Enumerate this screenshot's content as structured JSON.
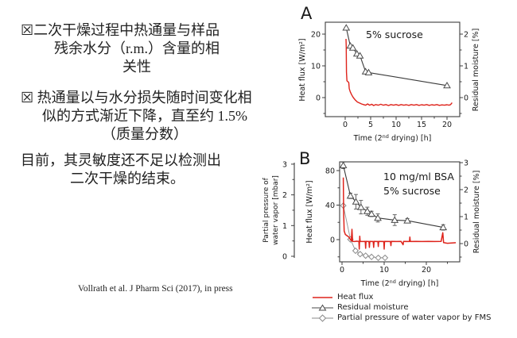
{
  "left_text": {
    "bullet1_lines": [
      "☒二次干燥过程中热通量与样品",
      "残余水分（r.m.）含量的相",
      "关性"
    ],
    "bullet2_lines": [
      "☒ 热通量以与水分损失随时间变化相",
      "似的方式渐近下降，直至约 1.5%",
      "（质量分数）"
    ],
    "para3_lines": [
      "目前，其灵敏度还不足以检测出",
      "二次干燥的结束。"
    ],
    "citation": "Vollrath et al. J Pharm Sci (2017), in press"
  },
  "legend": {
    "items": [
      {
        "label": "Heat flux",
        "marker": "red-line",
        "color": "#de231b"
      },
      {
        "label": "Residual moisture",
        "marker": "triangle-line",
        "color": "#4a4a4a"
      },
      {
        "label": "Partial pressure of water vapor by FMS",
        "marker": "diamond-line",
        "color": "#8a8a8a"
      }
    ]
  },
  "chart_data": [
    {
      "type": "line",
      "panel_label": "A",
      "annotation_lines": [
        "5% sucrose"
      ],
      "xlabel": "Time (2nd drying) [h]",
      "xlabel_parts": [
        "Time (2",
        "nd",
        " drying) [h]"
      ],
      "ylabel_left": "Heat flux [W/m²]",
      "ylabel_right": "Residual moisture [%]",
      "xlim": [
        -3.9,
        22.5
      ],
      "ylim_left": [
        -6,
        23.75
      ],
      "ylim_right": [
        -0.6,
        2.38
      ],
      "xticks": [
        0,
        5,
        10,
        15,
        20
      ],
      "xticks_minor": [
        2.5,
        7.5,
        12.5,
        17.5
      ],
      "yticks_left": [
        0,
        10,
        20
      ],
      "yticks_left_minor": [
        -5,
        5,
        15
      ],
      "yticks_right": [
        0,
        1,
        2
      ],
      "yticks_right_minor": [
        -0.5,
        0.5,
        1.5
      ],
      "series": [
        {
          "name": "Residual moisture",
          "axis": "right",
          "marker": "triangle",
          "color": "#3a3a3a",
          "width": 1.1,
          "points": [
            [
              0.2,
              2.2
            ],
            [
              1.0,
              1.63
            ],
            [
              1.5,
              1.57
            ],
            [
              2.3,
              1.38
            ],
            [
              2.9,
              1.32
            ],
            [
              4.0,
              0.82
            ],
            [
              4.6,
              0.79
            ],
            [
              20,
              0.38
            ]
          ]
        },
        {
          "name": "Heat flux",
          "axis": "left",
          "marker": "none",
          "color": "#de231b",
          "width": 1.4,
          "points": [
            [
              0.15,
              18.5
            ],
            [
              0.2,
              16
            ],
            [
              0.25,
              8
            ],
            [
              0.35,
              5.3
            ],
            [
              0.55,
              5.0
            ],
            [
              0.7,
              4.7
            ],
            [
              0.8,
              2.8
            ],
            [
              1.0,
              1.8
            ],
            [
              1.3,
              0.8
            ],
            [
              1.6,
              0.0
            ],
            [
              2.0,
              -0.8
            ],
            [
              2.4,
              -1.4
            ],
            [
              2.8,
              -1.7
            ],
            [
              3.2,
              -2.0
            ],
            [
              3.6,
              -2.2
            ],
            [
              4.0,
              -2.4
            ],
            [
              4.4,
              -2.0
            ],
            [
              4.8,
              -2.4
            ],
            [
              5.2,
              -2.1
            ],
            [
              5.6,
              -2.5
            ],
            [
              6.0,
              -2.2
            ],
            [
              6.5,
              -2.4
            ],
            [
              7.0,
              -2.1
            ],
            [
              7.5,
              -2.4
            ],
            [
              8.0,
              -2.2
            ],
            [
              8.5,
              -2.5
            ],
            [
              9.0,
              -2.2
            ],
            [
              9.5,
              -2.4
            ],
            [
              10.0,
              -2.2
            ],
            [
              10.5,
              -2.45
            ],
            [
              11.0,
              -2.2
            ],
            [
              11.5,
              -2.4
            ],
            [
              12.0,
              -2.25
            ],
            [
              12.5,
              -2.45
            ],
            [
              13.0,
              -2.2
            ],
            [
              13.5,
              -2.4
            ],
            [
              14.0,
              -2.2
            ],
            [
              14.5,
              -2.45
            ],
            [
              15.0,
              -2.25
            ],
            [
              15.5,
              -2.4
            ],
            [
              16.0,
              -2.2
            ],
            [
              16.5,
              -2.45
            ],
            [
              17.0,
              -2.25
            ],
            [
              17.5,
              -2.4
            ],
            [
              18.0,
              -2.2
            ],
            [
              18.5,
              -2.45
            ],
            [
              19.0,
              -2.3
            ],
            [
              19.5,
              -2.4
            ],
            [
              20.0,
              -2.25
            ],
            [
              20.4,
              -2.4
            ],
            [
              20.7,
              -2.2
            ],
            [
              21.0,
              -1.6
            ]
          ]
        }
      ]
    },
    {
      "type": "line",
      "panel_label": "B",
      "annotation_lines": [
        "10 mg/ml BSA",
        "5% sucrose"
      ],
      "xlabel": "Time (2nd drying) [h]",
      "xlabel_parts": [
        "Time (2",
        "nd",
        " drying) [h]"
      ],
      "ylabel_left": "Heat flux [W/m²]",
      "ylabel_right": "Residual moisture [%]",
      "ylabel_far_left_lines": [
        "Partial pressure of",
        "water vapor [mbar]"
      ],
      "xlim": [
        -5.7,
        27.9
      ],
      "ylim_left": [
        -26,
        90
      ],
      "ylim_right": [
        -0.68,
        3.03
      ],
      "ylim_far_left": [
        -0.05,
        3.05
      ],
      "xticks": [
        0,
        10,
        20
      ],
      "xticks_minor": [
        5,
        15,
        25
      ],
      "yticks_left": [
        0,
        40,
        80
      ],
      "yticks_left_minor": [
        -20,
        20,
        60
      ],
      "yticks_right": [
        0,
        1,
        2,
        3
      ],
      "yticks_right_minor": [
        -0.5,
        0.5,
        1.5,
        2.5
      ],
      "yticks_far_left": [
        0,
        1,
        2,
        3
      ],
      "yticks_far_left_minor": [
        0.5,
        1.5,
        2.5
      ],
      "series": [
        {
          "name": "Residual moisture",
          "axis": "right",
          "marker": "triangle",
          "color": "#3a3a3a",
          "width": 1.1,
          "points": [
            [
              0.3,
              2.9,
              0.12
            ],
            [
              2.0,
              1.77,
              0.1
            ],
            [
              3.3,
              1.55,
              0.27
            ],
            [
              4.5,
              1.35,
              0.25
            ],
            [
              6.0,
              1.2,
              0.15
            ],
            [
              7.0,
              1.1,
              0.1
            ],
            [
              8.5,
              0.95,
              0.15
            ],
            [
              12.5,
              0.87,
              0.2
            ],
            [
              15.5,
              0.85,
              0.08
            ],
            [
              24.0,
              0.6,
              0.1
            ]
          ]
        },
        {
          "name": "Partial pressure of water vapor by FMS",
          "axis": "far_left",
          "marker": "diamond",
          "color": "#9a9a9a",
          "width": 1,
          "points": [
            [
              0.3,
              1.65
            ],
            [
              2.0,
              0.55
            ],
            [
              3.2,
              0.18
            ],
            [
              4.3,
              0.07
            ],
            [
              5.6,
              0.02
            ],
            [
              7.0,
              -0.02
            ],
            [
              8.6,
              -0.05
            ],
            [
              10.2,
              -0.05
            ]
          ]
        },
        {
          "name": "Heat flux",
          "axis": "left",
          "marker": "none",
          "color": "#de231b",
          "width": 1.5,
          "points": [
            [
              0.3,
              72
            ],
            [
              0.4,
              30
            ],
            [
              0.5,
              10
            ],
            [
              0.8,
              6
            ],
            [
              1.2,
              4.5
            ],
            [
              1.6,
              3
            ],
            [
              2.0,
              0
            ],
            [
              2.2,
              -1.5
            ],
            [
              2.35,
              12
            ],
            [
              2.5,
              -2
            ],
            [
              3.0,
              -2.2
            ],
            [
              3.5,
              -1.8
            ],
            [
              4.0,
              -2
            ],
            [
              4.1,
              -11
            ],
            [
              4.2,
              4
            ],
            [
              4.3,
              -2
            ],
            [
              5.0,
              -2.2
            ],
            [
              5.5,
              -2
            ],
            [
              5.6,
              -10
            ],
            [
              5.7,
              -2
            ],
            [
              6.4,
              -2.2
            ],
            [
              6.5,
              -9
            ],
            [
              6.6,
              -2
            ],
            [
              7.4,
              -2.2
            ],
            [
              7.5,
              -9
            ],
            [
              7.6,
              -2
            ],
            [
              8.5,
              -2.2
            ],
            [
              8.6,
              -8
            ],
            [
              8.7,
              -2
            ],
            [
              9.9,
              -2.2
            ],
            [
              10.0,
              -11
            ],
            [
              10.1,
              -2
            ],
            [
              11.5,
              -2.2
            ],
            [
              11.6,
              -7
            ],
            [
              11.7,
              -2
            ],
            [
              13.0,
              -2.2
            ],
            [
              14.0,
              -2
            ],
            [
              14.5,
              -6
            ],
            [
              14.6,
              -2
            ],
            [
              16.0,
              -2.2
            ],
            [
              16.1,
              3
            ],
            [
              16.2,
              -2.2
            ],
            [
              17.5,
              -2
            ],
            [
              19.0,
              -2.2
            ],
            [
              20.5,
              -2
            ],
            [
              22.0,
              -2.2
            ],
            [
              23.5,
              -2
            ],
            [
              23.9,
              8
            ],
            [
              24.1,
              -3.5
            ],
            [
              25.0,
              -4.2
            ],
            [
              26.0,
              -4
            ],
            [
              27.0,
              -3.6
            ]
          ]
        }
      ]
    }
  ]
}
